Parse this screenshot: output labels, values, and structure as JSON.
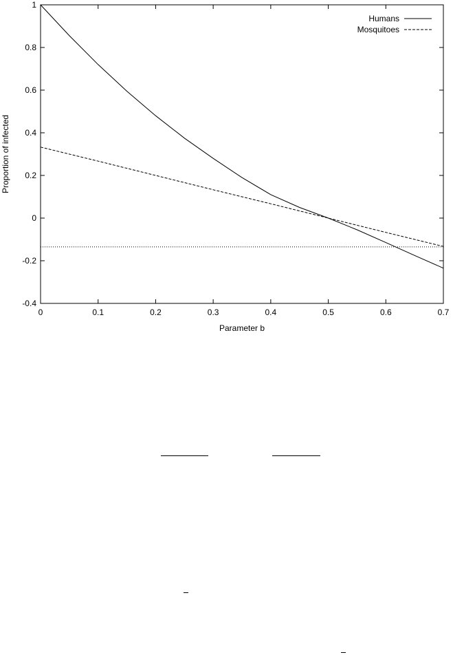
{
  "chart_data": {
    "type": "line",
    "xlabel": "Parameter b",
    "ylabel": "Proportion of infected",
    "xlim": [
      0,
      0.7
    ],
    "ylim": [
      -0.4,
      1
    ],
    "x_ticks": [
      "0",
      "0.1",
      "0.2",
      "0.3",
      "0.4",
      "0.5",
      "0.6",
      "0.7"
    ],
    "y_ticks": [
      "-0.4",
      "-0.2",
      "0",
      "0.2",
      "0.4",
      "0.6",
      "0.8",
      "1"
    ],
    "grid": false,
    "legend_position": "top-right",
    "series": [
      {
        "name": "Humans",
        "style": "solid",
        "x": [
          0,
          0.05,
          0.1,
          0.15,
          0.2,
          0.25,
          0.3,
          0.35,
          0.4,
          0.45,
          0.5,
          0.55,
          0.6,
          0.65,
          0.7
        ],
        "y": [
          1,
          0.855,
          0.72,
          0.595,
          0.48,
          0.375,
          0.28,
          0.19,
          0.11,
          0.05,
          0,
          -0.055,
          -0.115,
          -0.175,
          -0.235
        ]
      },
      {
        "name": "Mosquitoes",
        "style": "dashed",
        "x": [
          0,
          0.1,
          0.2,
          0.3,
          0.4,
          0.5,
          0.6,
          0.7
        ],
        "y": [
          0.333,
          0.267,
          0.2,
          0.133,
          0.067,
          0,
          -0.067,
          -0.133
        ]
      },
      {
        "style": "dotted",
        "x": [
          0,
          0.7
        ],
        "y": [
          -0.135,
          -0.135
        ]
      }
    ]
  },
  "colors": {
    "line": "#000000",
    "background": "#ffffff"
  }
}
